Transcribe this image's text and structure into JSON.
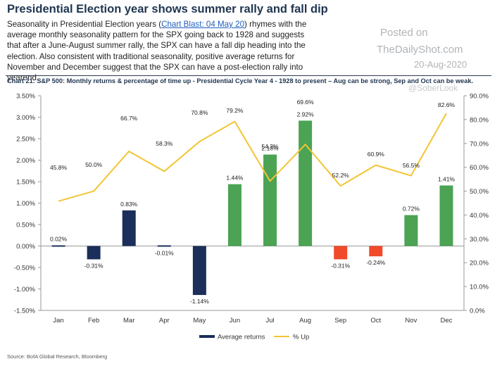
{
  "header": {
    "title": "Presidential Election year shows summer rally and fall dip",
    "desc_pre": "Seasonality in Presidential Election years (",
    "desc_link": "Chart Blast: 04 May 20",
    "desc_post": ") rhymes with the average monthly seasonality pattern for the SPX going back to 1928 and suggests that after a June-August summer rally, the SPX can have a fall dip heading into the election. Also consistent with traditional seasonality, positive average returns for November and December suggest that the SPX can have a post-election rally into yearend."
  },
  "posted": {
    "line1": "Posted on",
    "line2": "TheDailyShot.com",
    "line3": "20-Aug-2020"
  },
  "watermark": "@SoberLook",
  "source": "Source: BofA Global Research, Bloomberg",
  "colors": {
    "positive": "#4ba353",
    "negative": "#f04a2a",
    "navy": "#1c2e5a",
    "line": "#f2c534",
    "axis": "#999999"
  },
  "chart_data": {
    "type": "bar",
    "title": "Chart 21: S&P 500: Monthly returns & percentage of time up - Presidential Cycle Year 4 - 1928 to present – Aug can be strong, Sep and Oct can be weak.",
    "categories": [
      "Jan",
      "Feb",
      "Mar",
      "Apr",
      "May",
      "Jun",
      "Jul",
      "Aug",
      "Sep",
      "Oct",
      "Nov",
      "Dec"
    ],
    "series": [
      {
        "name": "Average returns",
        "kind": "bar",
        "axis": "left",
        "values": [
          0.02,
          -0.31,
          0.83,
          -0.01,
          -1.14,
          1.44,
          2.13,
          2.92,
          -0.31,
          -0.24,
          0.72,
          1.41
        ],
        "labels": [
          "0.02%",
          "-0.31%",
          "0.83%",
          "-0.01%",
          "-1.14%",
          "1.44%",
          "2.13%",
          "2.92%",
          "-0.31%",
          "-0.24%",
          "0.72%",
          "1.41%"
        ],
        "colors": [
          "navy",
          "navy",
          "navy",
          "navy",
          "navy",
          "positive",
          "positive",
          "positive",
          "negative",
          "negative",
          "positive",
          "positive"
        ]
      },
      {
        "name": "% Up",
        "kind": "line",
        "axis": "right",
        "values": [
          45.8,
          50.0,
          66.7,
          58.3,
          70.8,
          79.2,
          54.2,
          69.6,
          52.2,
          60.9,
          56.5,
          82.6
        ],
        "labels": [
          "45.8%",
          "50.0%",
          "66.7%",
          "58.3%",
          "70.8%",
          "79.2%",
          "54.2%",
          "69.6%",
          "52.2%",
          "60.9%",
          "56.5%",
          "82.6%"
        ]
      }
    ],
    "y_left": {
      "range": [
        -1.5,
        3.5
      ],
      "ticks": [
        3.5,
        3.0,
        2.5,
        2.0,
        1.5,
        1.0,
        0.5,
        0.0,
        -0.5,
        -1.0,
        -1.5
      ],
      "tick_labels": [
        "3.50%",
        "3.00%",
        "2.50%",
        "2.00%",
        "1.50%",
        "1.00%",
        "0.50%",
        "0.00%",
        "-0.50%",
        "-1.00%",
        "-1.50%"
      ]
    },
    "y_right": {
      "range": [
        0,
        90
      ],
      "ticks": [
        90,
        80,
        70,
        60,
        50,
        40,
        30,
        20,
        10,
        0
      ],
      "tick_labels": [
        "90.0%",
        "80.0%",
        "70.0%",
        "60.0%",
        "50.0%",
        "40.0%",
        "30.0%",
        "20.0%",
        "10.0%",
        "0.0%"
      ]
    },
    "legend": {
      "placement": "bottom",
      "items": [
        "Average returns",
        "% Up"
      ]
    },
    "grid": false
  }
}
